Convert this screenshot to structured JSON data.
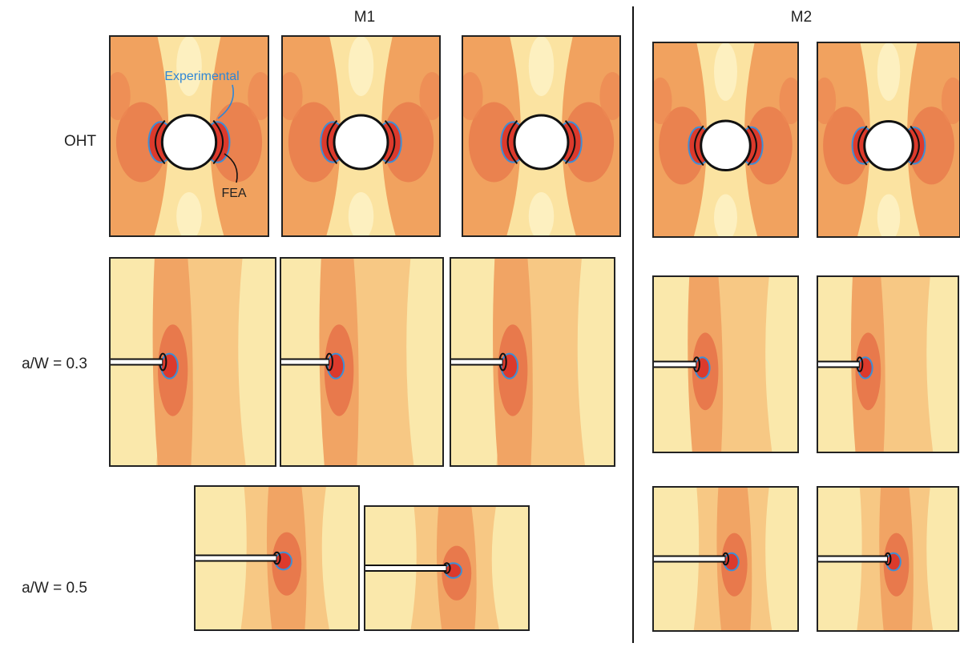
{
  "columns": [
    "M1",
    "M2"
  ],
  "rows": [
    "OHT",
    "a/W = 0.3",
    "a/W = 0.5"
  ],
  "annotations": {
    "experimental": "Experimental",
    "fea": "FEA"
  }
}
